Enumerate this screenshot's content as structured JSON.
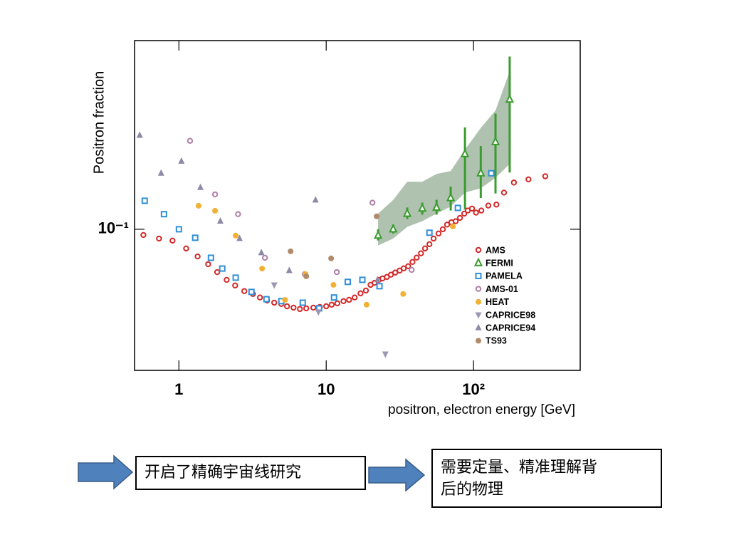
{
  "chart_data": {
    "type": "scatter",
    "xscale": "log",
    "yscale": "log",
    "y_label": "Positron fraction",
    "x_label": "positron, electron energy [GeV]",
    "xlim": [
      0.5,
      530
    ],
    "ylim": [
      0.0306,
      0.487
    ],
    "xticks": [
      1,
      10,
      {
        "value": 100,
        "label": "10²"
      }
    ],
    "yticks": [
      {
        "value": 0.1,
        "label": "10⁻¹"
      }
    ],
    "legend": "lower right",
    "series": [
      {
        "name": "AMS",
        "color": "#d42a2a",
        "marker": "circle-open",
        "x": [
          0.574,
          0.733,
          0.905,
          1.12,
          1.34,
          1.58,
          1.82,
          2.11,
          2.41,
          2.78,
          3.18,
          3.55,
          3.97,
          4.44,
          4.96,
          5.42,
          6.0,
          6.63,
          7.32,
          8.18,
          9.05,
          10,
          10.9,
          11.9,
          13.1,
          14.3,
          15.6,
          17.1,
          18.6,
          20.0,
          21.3,
          22.8,
          24.1,
          25.8,
          27.5,
          29.4,
          31.5,
          33.6,
          36.0,
          38.5,
          41.1,
          44.0,
          46.9,
          50.2,
          53.6,
          57.9,
          61.9,
          66.2,
          70.8,
          75.7,
          80.9,
          86.5,
          91.4,
          97.7,
          104,
          113,
          126,
          143,
          161,
          188,
          236,
          307
        ],
        "values": [
          0.0953,
          0.0925,
          0.0909,
          0.0851,
          0.0796,
          0.0746,
          0.0698,
          0.0654,
          0.0624,
          0.0595,
          0.0581,
          0.0564,
          0.055,
          0.054,
          0.0534,
          0.0524,
          0.0518,
          0.0512,
          0.0515,
          0.0518,
          0.0521,
          0.0524,
          0.0531,
          0.0537,
          0.0547,
          0.0553,
          0.0564,
          0.0584,
          0.0598,
          0.0627,
          0.0638,
          0.0654,
          0.0662,
          0.067,
          0.0683,
          0.0695,
          0.0707,
          0.072,
          0.0733,
          0.076,
          0.0788,
          0.0817,
          0.0851,
          0.0882,
          0.0925,
          0.0965,
          0.1,
          0.104,
          0.106,
          0.107,
          0.11,
          0.114,
          0.117,
          0.119,
          0.115,
          0.117,
          0.122,
          0.123,
          0.136,
          0.148,
          0.152,
          0.156
        ]
      },
      {
        "name": "FERMI",
        "color": "#3a9b2e",
        "marker": "triangle-open",
        "x": [
          22.5,
          28.5,
          35.5,
          44.9,
          56.1,
          70.0,
          87.5,
          112,
          141,
          176
        ],
        "values": [
          0.0948,
          0.1,
          0.114,
          0.119,
          0.12,
          0.13,
          0.188,
          0.16,
          0.208,
          0.297
        ],
        "error_low": [
          0.091,
          0.0965,
          0.109,
          0.113,
          0.113,
          0.117,
          0.118,
          0.13,
          0.135,
          0.161
        ],
        "error_high": [
          0.1,
          0.104,
          0.12,
          0.125,
          0.128,
          0.143,
          0.235,
          0.201,
          0.264,
          0.426
        ],
        "band_low": [
          0.0872,
          0.0925,
          0.102,
          0.107,
          0.114,
          0.121,
          0.136,
          0.141,
          0.154,
          0.173
        ],
        "band_high": [
          0.114,
          0.128,
          0.149,
          0.149,
          0.159,
          0.163,
          0.195,
          0.234,
          0.271,
          0.376
        ]
      },
      {
        "name": "PAMELA",
        "color": "#2f8fd8",
        "marker": "square-open",
        "x": [
          0.586,
          0.792,
          1.0,
          1.29,
          1.65,
          1.97,
          2.43,
          3.11,
          3.93,
          4.96,
          6.93,
          8.95,
          11.3,
          14.0,
          17.6,
          23.0,
          50.2,
          78.3,
          132
        ],
        "values": [
          0.127,
          0.1135,
          0.1,
          0.0931,
          0.0787,
          0.0719,
          0.0666,
          0.0591,
          0.0556,
          0.0547,
          0.054,
          0.0515,
          0.0564,
          0.0643,
          0.0654,
          0.062,
          0.0971,
          0.1196,
          0.16
        ]
      },
      {
        "name": "AMS-01",
        "color": "#b07fa6",
        "marker": "circle-open",
        "x": [
          1.19,
          1.76,
          2.52,
          3.84,
          7.16,
          11.8,
          20.6,
          38.0
        ],
        "values": [
          0.21,
          0.134,
          0.1135,
          0.0787,
          0.0686,
          0.0698,
          0.125,
          0.0711
        ]
      },
      {
        "name": "HEAT",
        "color": "#f2b134",
        "marker": "circle-filled",
        "x": [
          1.36,
          1.76,
          2.43,
          3.67,
          5.25,
          7.24,
          11.2,
          18.8,
          33.3,
          72.4
        ],
        "values": [
          0.1218,
          0.1168,
          0.0948,
          0.0719,
          0.0553,
          0.0686,
          0.0627,
          0.0531,
          0.0581,
          0.1024
        ]
      },
      {
        "name": "CAPRICE98",
        "color": "#9a98b2",
        "marker": "triangle-down",
        "x": [
          4.44,
          8.85,
          25.2
        ],
        "values": [
          0.0627,
          0.05,
          0.0351
        ]
      },
      {
        "name": "CAPRICE94",
        "color": "#8d8aa8",
        "marker": "triangle-up",
        "x": [
          0.542,
          0.757,
          1.04,
          1.4,
          1.91,
          2.58,
          3.63,
          5.61,
          8.46,
          22.3
        ],
        "values": [
          0.22,
          0.16,
          0.177,
          0.142,
          0.107,
          0.0925,
          0.0821,
          0.0707,
          0.1278,
          0.0654
        ]
      },
      {
        "name": "TS93",
        "color": "#b08a6a",
        "marker": "circle-filled",
        "x": [
          5.73,
          7.32,
          10.8,
          22.0
        ],
        "values": [
          0.0831,
          0.0674,
          0.0783,
          0.1114
        ]
      }
    ]
  },
  "notes": {
    "left_box": "开启了精确宇宙线研究",
    "right_box": [
      "需要定量、精准理解背",
      "后的物理"
    ]
  }
}
